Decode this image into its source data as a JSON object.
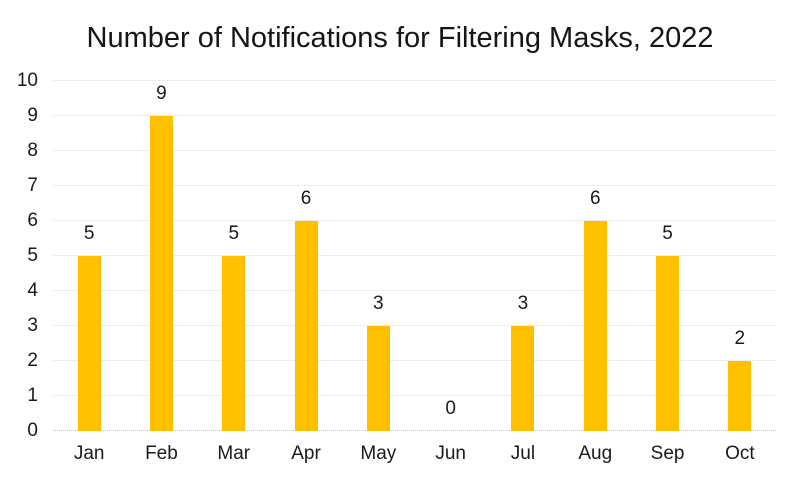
{
  "chart_data": {
    "type": "bar",
    "title": "Number of Notifications for Filtering Masks, 2022",
    "categories": [
      "Jan",
      "Feb",
      "Mar",
      "Apr",
      "May",
      "Jun",
      "Jul",
      "Aug",
      "Sep",
      "Oct"
    ],
    "values": [
      5,
      9,
      5,
      6,
      3,
      0,
      3,
      6,
      5,
      2
    ],
    "data_labels": [
      "5",
      "9",
      "5",
      "6",
      "3",
      "0",
      "3",
      "6",
      "5",
      "2"
    ],
    "xlabel": "",
    "ylabel": "",
    "ylim": [
      0,
      10
    ],
    "yticks": [
      0,
      1,
      2,
      3,
      4,
      5,
      6,
      7,
      8,
      9,
      10
    ],
    "grid": "horizontal-major",
    "legend": "none",
    "colors": {
      "bar": "#FFC000",
      "text": "#1a1a1a",
      "gridline": "#ededed",
      "axis_line": "#c6c6c6",
      "background": "#ffffff"
    }
  }
}
